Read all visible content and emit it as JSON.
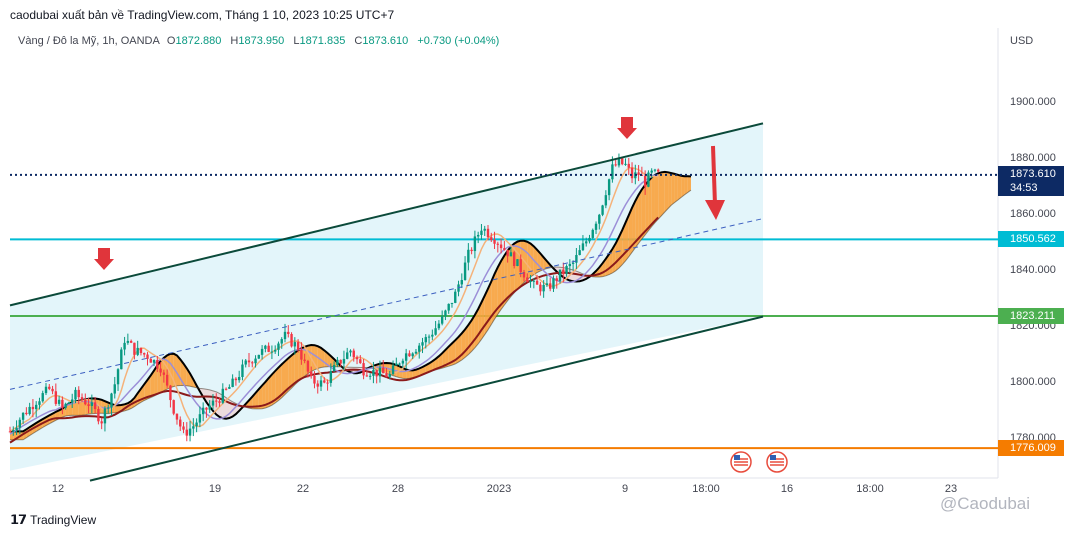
{
  "header": {
    "published": "caodubai xuất bản về TradingView.com, Tháng 1 10, 2023 10:25 UTC+7"
  },
  "legend": {
    "symbol": "Vàng / Đô la Mỹ, 1h, OANDA",
    "o_label": "O",
    "o_value": "1872.880",
    "h_label": "H",
    "h_value": "1873.950",
    "l_label": "L",
    "l_value": "1871.835",
    "c_label": "C",
    "c_value": "1873.610",
    "change": "+0.730 (+0.04%)"
  },
  "currency": "USD",
  "price_labels": {
    "last_price": "1873.610",
    "countdown": "34:53",
    "level_cyan": "1850.562",
    "level_green": "1823.211",
    "level_orange": "1776.009"
  },
  "colors": {
    "channel_fill": "#e3f5fa",
    "channel_line": "#0b4a3a",
    "cyan_level": "#00bcd4",
    "green_level": "#4caf50",
    "orange_level": "#f57c00",
    "last_price": "#0d2a64",
    "arrow": "#e0353b",
    "kumo_orange": "#f9a23b",
    "kumo_pink": "#f0d0d0",
    "ma_red": "#8b1a1a",
    "ma_blue": "#9c8fd8",
    "ma_orange": "#f5b27a",
    "candle_up": "#089981",
    "candle_down": "#f23645"
  },
  "footer": {
    "brand": "TradingView",
    "logo": "tradingview-logo-icon"
  },
  "watermark": "@Caodubai",
  "chart_data": {
    "type": "candlestick",
    "symbol": "Vàng / Đô la Mỹ",
    "timeframe": "1h",
    "ylim": [
      1770,
      1910
    ],
    "y_ticks": [
      "1780.000",
      "1800.000",
      "1820.000",
      "1840.000",
      "1860.000",
      "1880.000",
      "1900.000"
    ],
    "x_ticks": [
      "12",
      "19",
      "22",
      "28",
      "2023",
      "9",
      "18:00",
      "16",
      "18:00",
      "23"
    ],
    "horizontal_levels": [
      1850.562,
      1823.211,
      1776.009
    ],
    "last_price": 1873.61,
    "price_path": [
      [
        0,
        1782
      ],
      [
        4,
        1788
      ],
      [
        8,
        1793
      ],
      [
        12,
        1797
      ],
      [
        16,
        1790
      ],
      [
        20,
        1795
      ],
      [
        24,
        1792
      ],
      [
        28,
        1786
      ],
      [
        32,
        1799
      ],
      [
        35,
        1815
      ],
      [
        38,
        1811
      ],
      [
        42,
        1809
      ],
      [
        46,
        1805
      ],
      [
        50,
        1790
      ],
      [
        53,
        1781
      ],
      [
        56,
        1784
      ],
      [
        60,
        1790
      ],
      [
        64,
        1794
      ],
      [
        68,
        1799
      ],
      [
        72,
        1806
      ],
      [
        76,
        1810
      ],
      [
        80,
        1812
      ],
      [
        84,
        1816
      ],
      [
        88,
        1812
      ],
      [
        92,
        1800
      ],
      [
        96,
        1799
      ],
      [
        100,
        1806
      ],
      [
        104,
        1811
      ],
      [
        108,
        1804
      ],
      [
        112,
        1803
      ],
      [
        116,
        1802
      ],
      [
        120,
        1809
      ],
      [
        124,
        1812
      ],
      [
        128,
        1816
      ],
      [
        132,
        1822
      ],
      [
        136,
        1831
      ],
      [
        140,
        1845
      ],
      [
        144,
        1855
      ],
      [
        148,
        1851
      ],
      [
        152,
        1846
      ],
      [
        156,
        1840
      ],
      [
        160,
        1834
      ],
      [
        164,
        1833
      ],
      [
        168,
        1838
      ],
      [
        172,
        1842
      ],
      [
        176,
        1850
      ],
      [
        180,
        1860
      ],
      [
        184,
        1876
      ],
      [
        186,
        1878
      ],
      [
        188,
        1877
      ],
      [
        190,
        1873
      ],
      [
        192,
        1874
      ],
      [
        194,
        1871
      ],
      [
        196,
        1874
      ],
      [
        198,
        1873.61
      ]
    ],
    "channel": {
      "upper": [
        [
          0,
          1827
        ],
        [
          230,
          1892
        ]
      ],
      "lower": [
        [
          0,
          1768
        ],
        [
          230,
          1823
        ]
      ],
      "mid": [
        [
          0,
          1797
        ],
        [
          230,
          1858
        ]
      ]
    }
  }
}
